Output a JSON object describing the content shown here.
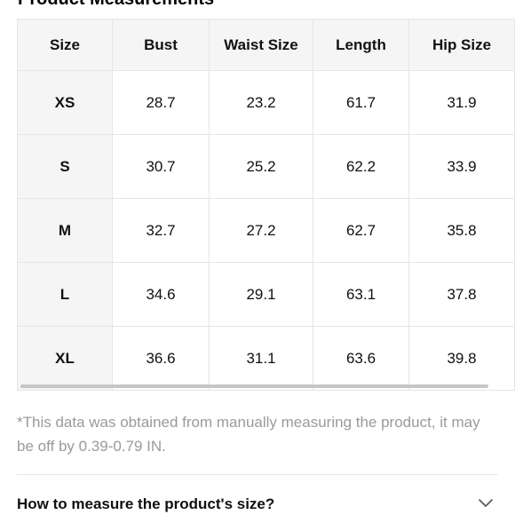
{
  "section": {
    "title": "Product Measurements"
  },
  "table": {
    "headers": [
      "Size",
      "Bust",
      "Waist Size",
      "Length",
      "Hip Size"
    ],
    "rows": [
      {
        "size": "XS",
        "bust": "28.7",
        "waist": "23.2",
        "length": "61.7",
        "hip": "31.9"
      },
      {
        "size": "S",
        "bust": "30.7",
        "waist": "25.2",
        "length": "62.2",
        "hip": "33.9"
      },
      {
        "size": "M",
        "bust": "32.7",
        "waist": "27.2",
        "length": "62.7",
        "hip": "35.8"
      },
      {
        "size": "L",
        "bust": "34.6",
        "waist": "29.1",
        "length": "63.1",
        "hip": "37.8"
      },
      {
        "size": "XL",
        "bust": "36.6",
        "waist": "31.1",
        "length": "63.6",
        "hip": "39.8"
      }
    ]
  },
  "note": {
    "text": "*This data was obtained from manually measuring the product, it may be off by 0.39-0.79 IN."
  },
  "measure_link": {
    "label": "How to measure the product's size?",
    "icon": "chevron-down-icon"
  },
  "colors": {
    "header_bg": "#f5f5f5",
    "border": "#e5e5e5",
    "note_text": "#9a9a9a",
    "scrollbar": "#c6c6c6"
  }
}
